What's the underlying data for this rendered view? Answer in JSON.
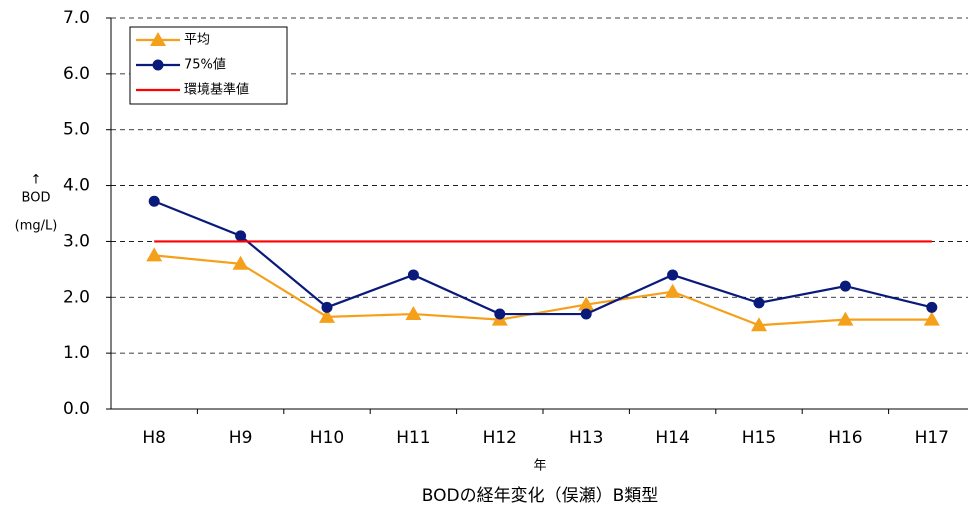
{
  "chart_data": {
    "type": "line",
    "title": "BODの経年変化（俣瀬）B類型",
    "xlabel": "年",
    "ylabel": [
      "↑",
      "BOD",
      "(mg/L)"
    ],
    "categories": [
      "H8",
      "H9",
      "H10",
      "H11",
      "H12",
      "H13",
      "H14",
      "H15",
      "H16",
      "H17"
    ],
    "series": [
      {
        "name": "平均",
        "color": "#f5a01a",
        "marker": "triangle",
        "values": [
          2.75,
          2.6,
          1.65,
          1.7,
          1.6,
          1.87,
          2.1,
          1.5,
          1.6,
          1.6
        ]
      },
      {
        "name": "75%値",
        "color": "#0a1a7a",
        "marker": "circle",
        "values": [
          3.72,
          3.1,
          1.82,
          2.4,
          1.7,
          1.7,
          2.4,
          1.9,
          2.2,
          1.82
        ]
      },
      {
        "name": "環境基準値",
        "color": "#ff0000",
        "marker": "none",
        "values": [
          3.0,
          3.0,
          3.0,
          3.0,
          3.0,
          3.0,
          3.0,
          3.0,
          3.0,
          3.0
        ]
      }
    ],
    "ylim": [
      0,
      7
    ],
    "yticks": [
      {
        "value": 0,
        "label": "0.0"
      },
      {
        "value": 1,
        "label": "1.0"
      },
      {
        "value": 2,
        "label": "2.0"
      },
      {
        "value": 3,
        "label": "3.0"
      },
      {
        "value": 4,
        "label": "4.0"
      },
      {
        "value": 5,
        "label": "5.0"
      },
      {
        "value": 6,
        "label": "6.0"
      },
      {
        "value": 7,
        "label": "7.0"
      }
    ],
    "grid": true,
    "legend": "upper left"
  }
}
